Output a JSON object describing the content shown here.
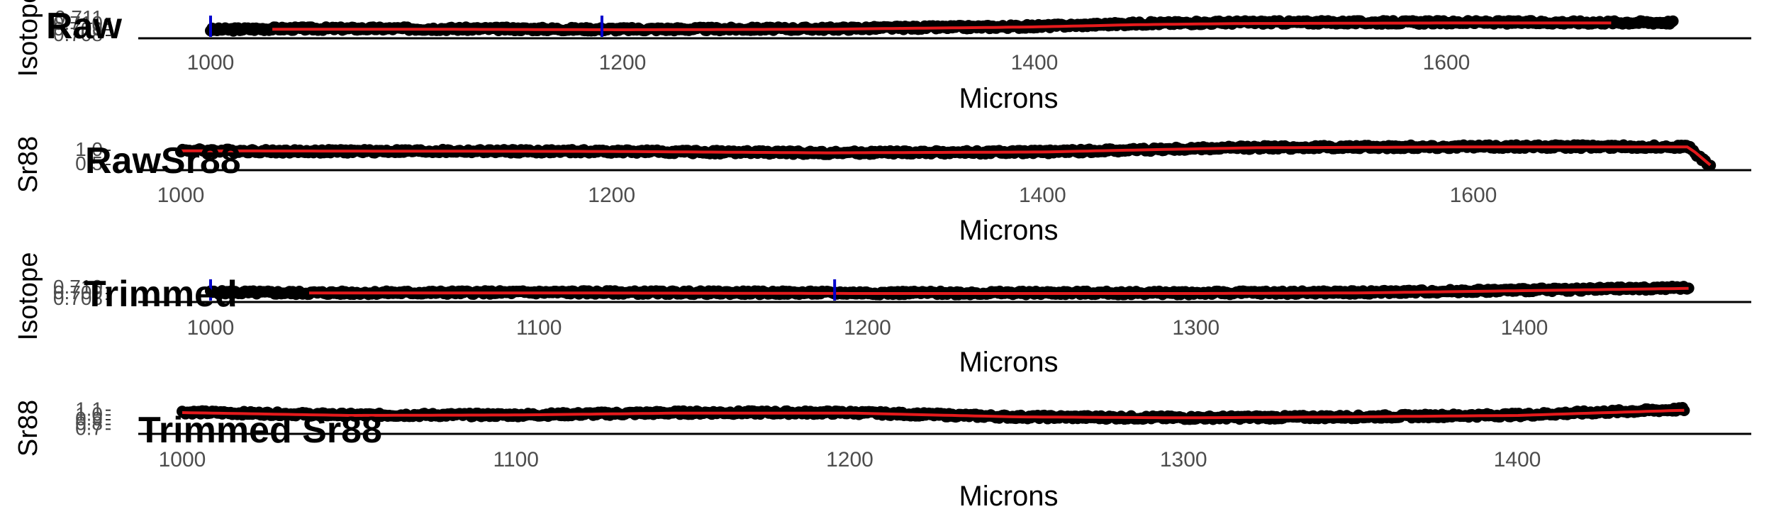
{
  "chart_data": [
    {
      "type": "scatter",
      "title": "Raw",
      "xlabel": "Microns",
      "ylabel": "Isotope",
      "xlim": [
        960,
        1740
      ],
      "ylim": [
        0.7075,
        0.7125
      ],
      "x_ticks": [
        "1000",
        "1200",
        "1400",
        "1600"
      ],
      "y_ticks": [
        "0.708",
        "0.709",
        "0.710",
        "0.711"
      ],
      "series": [
        {
          "role": "points",
          "color": "#000000",
          "x": [
            1000,
            1030,
            1100,
            1200,
            1300,
            1400,
            1450,
            1500,
            1600,
            1700,
            1710
          ],
          "y": [
            0.709,
            0.7092,
            0.7092,
            0.7091,
            0.7092,
            0.7096,
            0.7101,
            0.7103,
            0.7103,
            0.7103,
            0.7103
          ]
        },
        {
          "role": "smooth",
          "color": "#e41a1c",
          "x": [
            1030,
            1100,
            1200,
            1300,
            1400,
            1450,
            1500,
            1600,
            1680
          ],
          "y": [
            0.7091,
            0.7091,
            0.709,
            0.7091,
            0.7095,
            0.7099,
            0.7101,
            0.7102,
            0.7102
          ]
        }
      ],
      "markers": {
        "color": "#0000cd",
        "x": [
          1000,
          1190
        ]
      },
      "grid": false
    },
    {
      "type": "scatter",
      "title": "RawSr88",
      "xlabel": "Microns",
      "ylabel": "Sr88",
      "xlim": [
        960,
        1740
      ],
      "ylim": [
        0.3,
        1.3
      ],
      "x_ticks": [
        "1000",
        "1200",
        "1400",
        "1600"
      ],
      "y_ticks": [
        "0.5",
        "1.0"
      ],
      "series": [
        {
          "role": "points",
          "color": "#000000",
          "x": [
            1000,
            1050,
            1100,
            1200,
            1300,
            1400,
            1450,
            1500,
            1600,
            1700,
            1705,
            1710
          ],
          "y": [
            1.0,
            0.96,
            0.97,
            0.96,
            0.91,
            0.94,
            1.03,
            1.1,
            1.13,
            1.13,
            0.75,
            0.45
          ]
        },
        {
          "role": "smooth",
          "color": "#e41a1c",
          "x": [
            1000,
            1100,
            1200,
            1300,
            1400,
            1450,
            1500,
            1600,
            1700,
            1710
          ],
          "y": [
            0.98,
            0.97,
            0.96,
            0.91,
            0.94,
            1.02,
            1.09,
            1.12,
            1.12,
            0.48
          ]
        }
      ],
      "grid": false
    },
    {
      "type": "scatter",
      "title": "Trimmed",
      "xlabel": "Microns",
      "ylabel": "Isotope",
      "xlim": [
        970,
        1470
      ],
      "ylim": [
        0.7075,
        0.7125
      ],
      "x_ticks": [
        "1000",
        "1100",
        "1200",
        "1300",
        "1400"
      ],
      "y_ticks": [
        "0.708",
        "0.709",
        "0.710"
      ],
      "series": [
        {
          "role": "points",
          "color": "#000000",
          "x": [
            1000,
            1030,
            1100,
            1200,
            1300,
            1350,
            1400,
            1450
          ],
          "y": [
            0.7092,
            0.7091,
            0.7092,
            0.7091,
            0.7091,
            0.7092,
            0.7096,
            0.71
          ]
        },
        {
          "role": "smooth",
          "color": "#e41a1c",
          "x": [
            1030,
            1100,
            1200,
            1300,
            1350,
            1400,
            1450
          ],
          "y": [
            0.7091,
            0.7091,
            0.709,
            0.709,
            0.7091,
            0.7095,
            0.7099
          ]
        }
      ],
      "markers": {
        "color": "#0000cd",
        "x": [
          1000,
          1190
        ]
      },
      "grid": false
    },
    {
      "type": "scatter",
      "title": "Trimmed Sr88",
      "xlabel": "Microns",
      "ylabel": "Sr88",
      "xlim": [
        970,
        1470
      ],
      "ylim": [
        0.6,
        1.2
      ],
      "x_ticks": [
        "1000",
        "1100",
        "1200",
        "1300",
        "1400"
      ],
      "y_ticks": [
        "0.7",
        "0.8",
        "0.9",
        "1.0",
        "1.1"
      ],
      "series": [
        {
          "role": "points",
          "color": "#000000",
          "x": [
            1000,
            1050,
            1100,
            1150,
            1200,
            1250,
            1300,
            1350,
            1400,
            1450
          ],
          "y": [
            1.06,
            1.0,
            1.0,
            1.05,
            1.05,
            0.96,
            0.94,
            0.96,
            1.0,
            1.12
          ]
        },
        {
          "role": "smooth",
          "color": "#e41a1c",
          "x": [
            1000,
            1050,
            1100,
            1150,
            1200,
            1250,
            1300,
            1350,
            1400,
            1450
          ],
          "y": [
            1.05,
            0.99,
            1.0,
            1.04,
            1.04,
            0.96,
            0.94,
            0.96,
            0.99,
            1.1
          ]
        }
      ],
      "grid": false
    }
  ]
}
